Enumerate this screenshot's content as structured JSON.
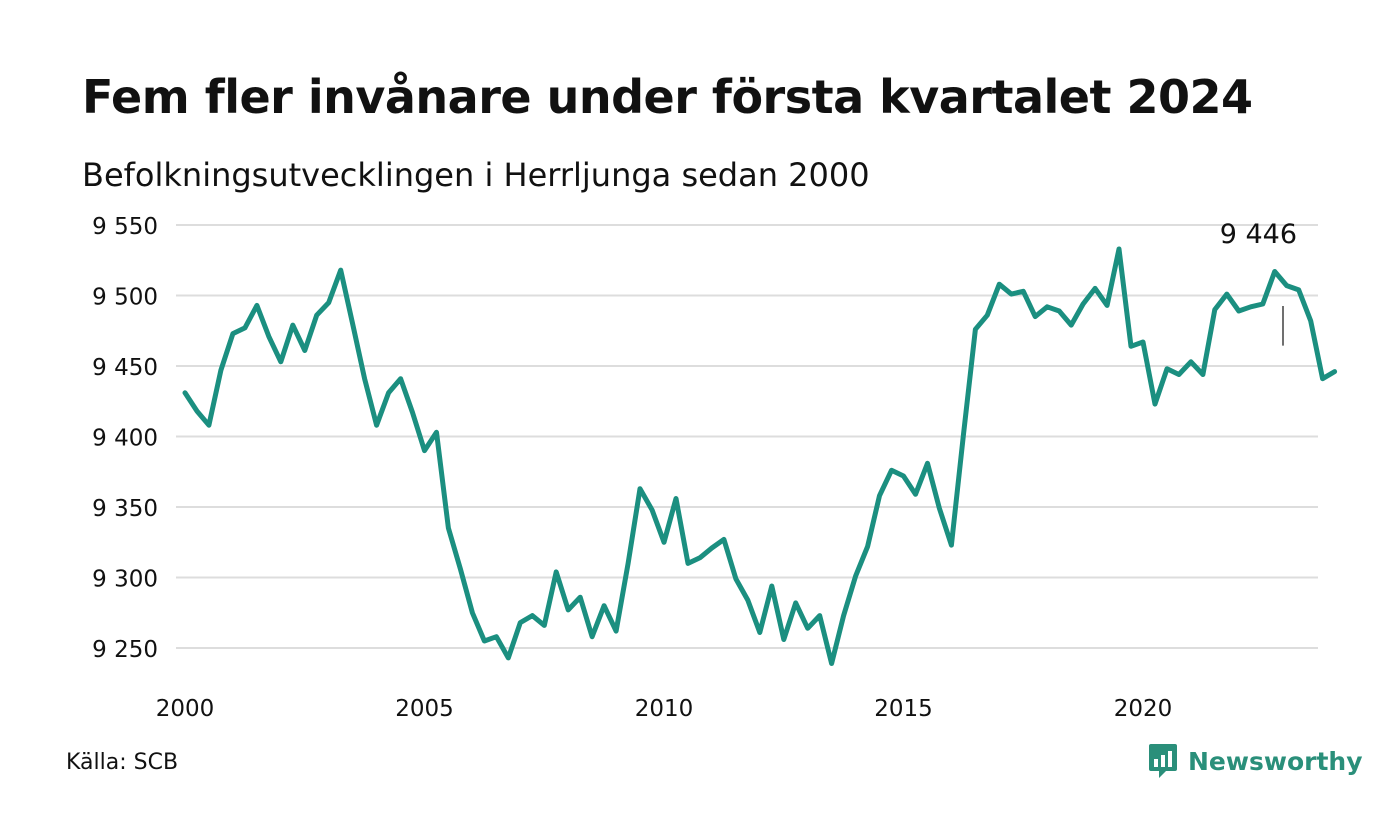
{
  "header": {
    "title": "Fem fler invånare under första kvartalet 2024",
    "subtitle": "Befolkningsutvecklingen i Herrljunga sedan 2000"
  },
  "footer": {
    "source": "Källa: SCB",
    "brand": "Newsworthy",
    "brand_icon": "newsworthy-logo-icon"
  },
  "colors": {
    "line": "#1b8f80",
    "grid": "#dddddd",
    "brand": "#2a8f7a"
  },
  "chart_data": {
    "type": "line",
    "title": "Fem fler invånare under första kvartalet 2024",
    "subtitle": "Befolkningsutvecklingen i Herrljunga sedan 2000",
    "xlabel": "",
    "ylabel": "",
    "xlim": [
      2000,
      2024.8
    ],
    "ylim": [
      9232,
      9555
    ],
    "x_ticks": [
      2000,
      2005,
      2010,
      2015,
      2020
    ],
    "x_tick_labels": [
      "2000",
      "2005",
      "2010",
      "2015",
      "2020"
    ],
    "y_ticks": [
      9250,
      9300,
      9350,
      9400,
      9450,
      9500,
      9550
    ],
    "y_tick_labels": [
      "9 250",
      "9 300",
      "9 350",
      "9 400",
      "9 450",
      "9 500",
      "9 550"
    ],
    "grid": true,
    "legend": "none",
    "annotation": {
      "label": "9 446",
      "x": 2024.0,
      "value": 9446
    },
    "series": [
      {
        "x": [
          2000.0,
          2000.25,
          2000.5,
          2000.75,
          2001.0,
          2001.25,
          2001.5,
          2001.75,
          2002.0,
          2002.25,
          2002.5,
          2002.75,
          2003.0,
          2003.25,
          2003.5,
          2003.75,
          2004.0,
          2004.25,
          2004.5,
          2004.75,
          2005.0,
          2005.25,
          2005.5,
          2005.75,
          2006.0,
          2006.25,
          2006.5,
          2006.75,
          2007.0,
          2007.25,
          2007.5,
          2007.75,
          2008.0,
          2008.25,
          2008.5,
          2008.75,
          2009.0,
          2009.25,
          2009.5,
          2009.75,
          2010.0,
          2010.25,
          2010.5,
          2010.75,
          2011.0,
          2011.25,
          2011.5,
          2011.75,
          2012.0,
          2012.25,
          2012.5,
          2012.75,
          2013.0,
          2013.25,
          2013.5,
          2013.75,
          2014.0,
          2014.25,
          2014.5,
          2014.75,
          2015.0,
          2015.25,
          2015.5,
          2015.75,
          2016.0,
          2016.25,
          2016.5,
          2016.75,
          2017.0,
          2017.25,
          2017.5,
          2017.75,
          2018.0,
          2018.25,
          2018.5,
          2018.75,
          2019.0,
          2019.25,
          2019.5,
          2019.75,
          2020.0,
          2020.25,
          2020.5,
          2020.75,
          2021.0,
          2021.25,
          2021.5,
          2021.75,
          2022.0,
          2022.25,
          2022.5,
          2022.75,
          2023.0,
          2023.25,
          2023.5,
          2023.75,
          2024.0
        ],
        "values": [
          9431,
          9418,
          9408,
          9447,
          9473,
          9477,
          9493,
          9471,
          9453,
          9479,
          9461,
          9486,
          9495,
          9518,
          9480,
          9441,
          9408,
          9431,
          9441,
          9417,
          9390,
          9403,
          9335,
          9306,
          9275,
          9255,
          9258,
          9243,
          9268,
          9273,
          9266,
          9304,
          9277,
          9286,
          9258,
          9280,
          9262,
          9310,
          9363,
          9348,
          9325,
          9356,
          9310,
          9314,
          9321,
          9327,
          9299,
          9284,
          9261,
          9294,
          9256,
          9282,
          9264,
          9273,
          9239,
          9273,
          9301,
          9322,
          9358,
          9376,
          9372,
          9359,
          9381,
          9349,
          9323,
          9401,
          9476,
          9486,
          9508,
          9501,
          9503,
          9485,
          9492,
          9489,
          9479,
          9494,
          9505,
          9493,
          9533,
          9464,
          9467,
          9423,
          9448,
          9444,
          9453,
          9444,
          9490,
          9501,
          9489,
          9492,
          9494,
          9517,
          9507,
          9504,
          9482,
          9441,
          9446
        ]
      }
    ]
  }
}
